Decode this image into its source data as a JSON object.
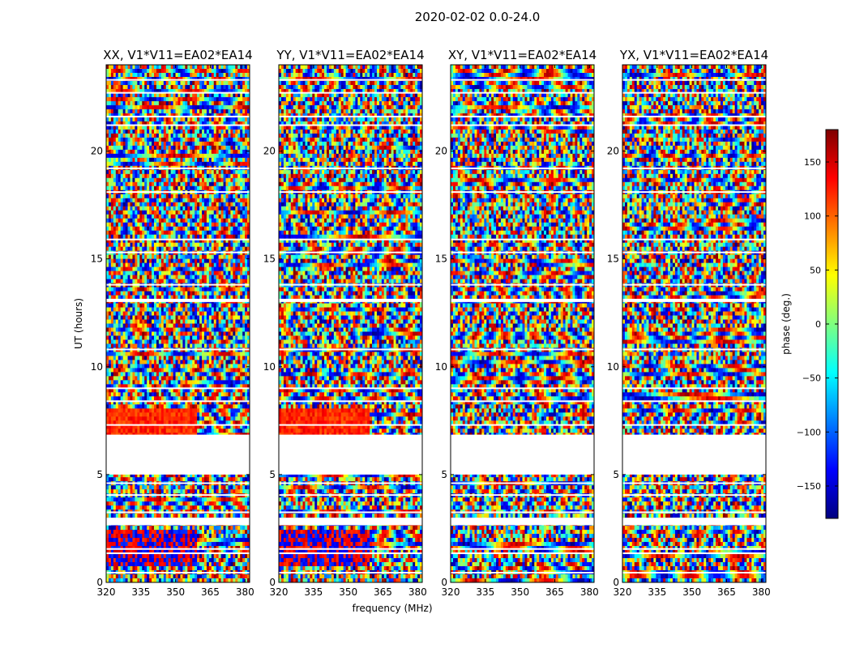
{
  "figure_title": "2020-02-02 0.0-24.0",
  "chart_data": [
    {
      "type": "heatmap",
      "title": "XX, V1*V11=EA02*EA14",
      "xlabel": "frequency (MHz)",
      "ylabel": "UT (hours)",
      "xlim": [
        320,
        382
      ],
      "ylim": [
        0,
        24
      ],
      "xticks": [
        320,
        335,
        350,
        365,
        380
      ],
      "yticks": [
        0,
        5,
        10,
        15,
        20
      ],
      "data_gaps_hours": [
        [
          2.65,
          3.0
        ],
        [
          5.0,
          6.85
        ],
        [
          13.0,
          13.15
        ]
      ]
    },
    {
      "type": "heatmap",
      "title": "YY, V1*V11=EA02*EA14",
      "xlabel": "frequency (MHz)",
      "ylabel": "UT (hours)",
      "xlim": [
        320,
        382
      ],
      "ylim": [
        0,
        24
      ],
      "xticks": [
        320,
        335,
        350,
        365,
        380
      ],
      "yticks": [
        0,
        5,
        10,
        15,
        20
      ],
      "data_gaps_hours": [
        [
          2.65,
          3.0
        ],
        [
          5.0,
          6.85
        ],
        [
          13.0,
          13.15
        ]
      ]
    },
    {
      "type": "heatmap",
      "title": "XY, V1*V11=EA02*EA14",
      "xlabel": "frequency (MHz)",
      "ylabel": "UT (hours)",
      "xlim": [
        320,
        382
      ],
      "ylim": [
        0,
        24
      ],
      "xticks": [
        320,
        335,
        350,
        365,
        380
      ],
      "yticks": [
        0,
        5,
        10,
        15,
        20
      ],
      "data_gaps_hours": [
        [
          2.65,
          3.0
        ],
        [
          5.0,
          6.85
        ],
        [
          13.0,
          13.15
        ]
      ]
    },
    {
      "type": "heatmap",
      "title": "YX, V1*V11=EA02*EA14",
      "xlabel": "frequency (MHz)",
      "ylabel": "UT (hours)",
      "xlim": [
        320,
        382
      ],
      "ylim": [
        0,
        24
      ],
      "xticks": [
        320,
        335,
        350,
        365,
        380
      ],
      "yticks": [
        0,
        5,
        10,
        15,
        20
      ],
      "data_gaps_hours": [
        [
          2.65,
          3.0
        ],
        [
          5.0,
          6.85
        ],
        [
          13.0,
          13.15
        ]
      ]
    }
  ],
  "colorbar": {
    "label": "phase (deg.)",
    "range": [
      -180,
      180
    ],
    "ticks": [
      150,
      100,
      50,
      0,
      -50,
      -100,
      -150
    ],
    "tick_labels": [
      "150",
      "100",
      "50",
      "0",
      "−50",
      "−100",
      "−150"
    ],
    "colormap": "jet",
    "colors": [
      "#00007f",
      "#0000ff",
      "#007fff",
      "#00ffff",
      "#7fff7f",
      "#ffff00",
      "#ff7f00",
      "#ff0000",
      "#7f0000"
    ]
  }
}
